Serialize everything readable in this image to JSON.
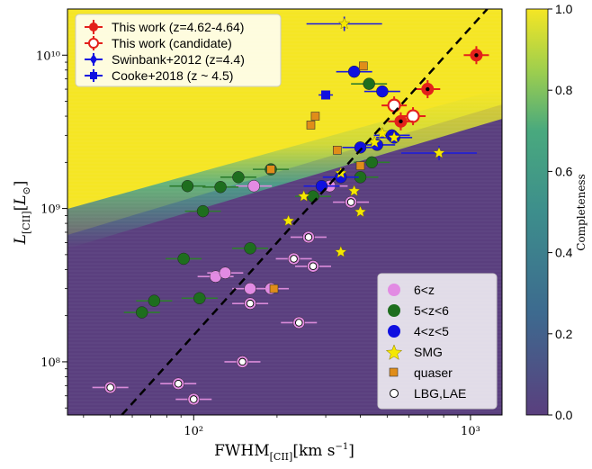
{
  "chart_data": {
    "type": "scatter",
    "xlabel": "FWHM$_{[\\mathrm{CII}]}$[km s$^{-1}$]",
    "ylabel": "$L_{[\\mathrm{CII}]}[L_\\odot]$",
    "xscale": "log",
    "yscale": "log",
    "xlim": [
      35,
      1300
    ],
    "ylim": [
      45000000,
      20000000000
    ],
    "x_ticks": [
      {
        "v": 100,
        "label": "10²"
      },
      {
        "v": 1000,
        "label": "10³"
      }
    ],
    "y_ticks": [
      {
        "v": 100000000,
        "label": "10⁸"
      },
      {
        "v": 1000000000,
        "label": "10⁹"
      },
      {
        "v": 10000000000,
        "label": "10¹⁰"
      }
    ],
    "colorbar": {
      "label": "Completeness",
      "range": [
        0,
        1
      ],
      "ticks": [
        "0.0",
        "0.2",
        "0.4",
        "0.6",
        "0.8",
        "1.0"
      ]
    },
    "colors": {
      "yellow": "#f5e624",
      "purple": "#5a3f7e",
      "violet": "#e28be3",
      "green": "#1e6e1e",
      "blue": "#1010e0",
      "red": "#e3201b",
      "orange": "#e08d19",
      "star": "#f5e800",
      "errbar_violet": "#d98ad9",
      "errbar_green": "#2e7d2e",
      "errbar_blue": "#1a1adf"
    },
    "legend_top": [
      "This work (z=4.62-4.64)",
      "This work (candidate)",
      "Swinbank+2012 (z=4.4)",
      "Cooke+2018 (z ~ 4.5)"
    ],
    "legend_bottom": [
      "6<z",
      "5<z<6",
      "4<z<5",
      "SMG",
      "quaser",
      "LBG,LAE"
    ],
    "series": [
      {
        "name": "This work (z=4.62-4.64)",
        "marker": "filled-circle",
        "color": "#e3201b",
        "points": [
          [
            1050,
            10000000000
          ],
          [
            700,
            6000000000
          ],
          [
            560,
            3700000000
          ]
        ]
      },
      {
        "name": "This work (candidate)",
        "marker": "open-circle",
        "color": "#e3201b",
        "points": [
          [
            530,
            4700000000
          ],
          [
            620,
            4000000000
          ]
        ]
      },
      {
        "name": "Swinbank+2012 (z=4.4)",
        "marker": "star",
        "color": "#1010e0",
        "points": [
          [
            350,
            16000000000
          ],
          [
            770,
            2300000000
          ]
        ]
      },
      {
        "name": "Cooke+2018 (z ~ 4.5)",
        "marker": "square",
        "color": "#1010e0",
        "points": [
          [
            300,
            5500000000
          ]
        ]
      },
      {
        "name": "6<z",
        "color": "#e28be3",
        "points": [
          [
            50,
            68000000
          ],
          [
            88,
            72000000
          ],
          [
            100,
            57000000
          ],
          [
            150,
            100000000
          ],
          [
            160,
            240000000
          ],
          [
            240,
            180000000
          ],
          [
            190,
            300000000
          ],
          [
            230,
            470000000
          ],
          [
            270,
            420000000
          ],
          [
            260,
            650000000
          ],
          [
            120,
            360000000
          ],
          [
            130,
            380000000
          ],
          [
            370,
            1100000000
          ],
          [
            310,
            1400000000
          ],
          [
            165,
            1400000000
          ],
          [
            160,
            300000000
          ]
        ]
      },
      {
        "name": "5<z<6",
        "color": "#1e6e1e",
        "points": [
          [
            65,
            210000000
          ],
          [
            72,
            250000000
          ],
          [
            92,
            470000000
          ],
          [
            105,
            260000000
          ],
          [
            108,
            960000000
          ],
          [
            95,
            1400000000
          ],
          [
            125,
            1380000000
          ],
          [
            145,
            1600000000
          ],
          [
            160,
            550000000
          ],
          [
            190,
            1800000000
          ],
          [
            270,
            1200000000
          ],
          [
            430,
            6500000000
          ],
          [
            400,
            1600000000
          ],
          [
            440,
            2000000000
          ]
        ]
      },
      {
        "name": "4<z<5",
        "color": "#1010e0",
        "points": [
          [
            290,
            1400000000
          ],
          [
            340,
            1600000000
          ],
          [
            380,
            7800000000
          ],
          [
            480,
            5800000000
          ],
          [
            520,
            3000000000
          ],
          [
            530,
            2900000000
          ],
          [
            460,
            2600000000
          ],
          [
            400,
            2500000000
          ]
        ]
      },
      {
        "name": "SMG",
        "marker": "star",
        "color": "#f5e800",
        "points": [
          [
            220,
            830000000
          ],
          [
            250,
            1200000000
          ],
          [
            340,
            1700000000
          ],
          [
            340,
            520000000
          ],
          [
            400,
            950000000
          ],
          [
            380,
            1300000000
          ],
          [
            450,
            2700000000
          ],
          [
            480,
            3100000000
          ],
          [
            530,
            2900000000
          ],
          [
            770,
            2300000000
          ],
          [
            350,
            16000000000
          ]
        ]
      },
      {
        "name": "quaser",
        "marker": "square",
        "color": "#e08d19",
        "points": [
          [
            195,
            300000000
          ],
          [
            190,
            1800000000
          ],
          [
            265,
            3500000000
          ],
          [
            275,
            4000000000
          ],
          [
            330,
            2400000000
          ],
          [
            400,
            1900000000
          ],
          [
            410,
            8500000000
          ],
          [
            300,
            5500000000
          ]
        ]
      },
      {
        "name": "LBG,LAE",
        "marker": "small-open-circle",
        "color": "#ffffff",
        "points": [
          [
            50,
            68000000
          ],
          [
            88,
            72000000
          ],
          [
            100,
            57000000
          ],
          [
            150,
            100000000
          ],
          [
            160,
            240000000
          ],
          [
            240,
            180000000
          ],
          [
            260,
            650000000
          ],
          [
            230,
            470000000
          ],
          [
            270,
            420000000
          ],
          [
            370,
            1100000000
          ]
        ]
      }
    ],
    "boundary_line": {
      "style": "dashed",
      "color": "#000000",
      "points": [
        [
          55,
          45000000
        ],
        [
          1150,
          20000000000
        ]
      ]
    }
  }
}
